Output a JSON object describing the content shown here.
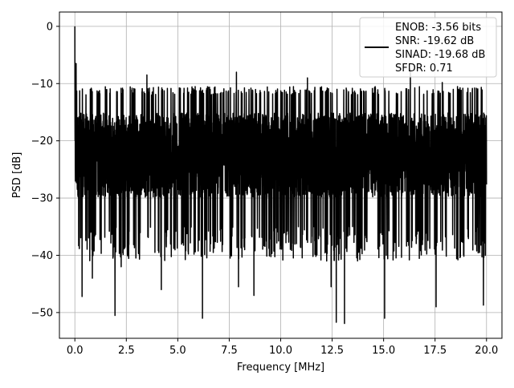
{
  "chart_data": {
    "type": "line",
    "xlabel": "Frequency [MHz]",
    "ylabel": "PSD [dB]",
    "xlim": [
      -0.75,
      20.75
    ],
    "ylim": [
      -54.5,
      2.5
    ],
    "grid": true,
    "x_ticks": [
      {
        "value": 0.0,
        "label": "0.0"
      },
      {
        "value": 2.5,
        "label": "2.5"
      },
      {
        "value": 5.0,
        "label": "5.0"
      },
      {
        "value": 7.5,
        "label": "7.5"
      },
      {
        "value": 10.0,
        "label": "10.0"
      },
      {
        "value": 12.5,
        "label": "12.5"
      },
      {
        "value": 15.0,
        "label": "15.0"
      },
      {
        "value": 17.5,
        "label": "17.5"
      },
      {
        "value": 20.0,
        "label": "20.0"
      }
    ],
    "y_ticks": [
      {
        "value": 0,
        "label": "0"
      },
      {
        "value": -10,
        "label": "−10"
      },
      {
        "value": -20,
        "label": "−20"
      },
      {
        "value": -30,
        "label": "−30"
      },
      {
        "value": -40,
        "label": "−40"
      },
      {
        "value": -50,
        "label": "−50"
      }
    ],
    "series": [
      {
        "color": "#000000",
        "x_range": [
          0,
          20
        ],
        "noise_band_db": [
          -33,
          -12
        ],
        "peaks": [
          {
            "x": 0.0,
            "y": 0.0
          },
          {
            "x": 0.06,
            "y": -6.5
          },
          {
            "x": 3.5,
            "y": -8.5
          },
          {
            "x": 7.85,
            "y": -8.0
          },
          {
            "x": 11.3,
            "y": -9.0
          },
          {
            "x": 16.3,
            "y": -7.5
          },
          {
            "x": 17.85,
            "y": -9.8
          }
        ],
        "dips": [
          {
            "x": 0.35,
            "y": -47.2
          },
          {
            "x": 0.85,
            "y": -44.0
          },
          {
            "x": 1.95,
            "y": -50.5
          },
          {
            "x": 2.25,
            "y": -42.0
          },
          {
            "x": 4.2,
            "y": -46.0
          },
          {
            "x": 6.2,
            "y": -51.0
          },
          {
            "x": 7.95,
            "y": -45.5
          },
          {
            "x": 8.7,
            "y": -47.0
          },
          {
            "x": 12.45,
            "y": -45.5
          },
          {
            "x": 12.7,
            "y": -51.7
          },
          {
            "x": 13.1,
            "y": -51.9
          },
          {
            "x": 15.05,
            "y": -51.0
          },
          {
            "x": 17.55,
            "y": -49.0
          },
          {
            "x": 19.85,
            "y": -48.7
          }
        ]
      }
    ],
    "legend": {
      "placement": "top-right",
      "entries": [
        "ENOB: -3.56 bits",
        "SNR: -19.62 dB",
        "SINAD: -19.68 dB",
        "SFDR: 0.71"
      ]
    }
  }
}
